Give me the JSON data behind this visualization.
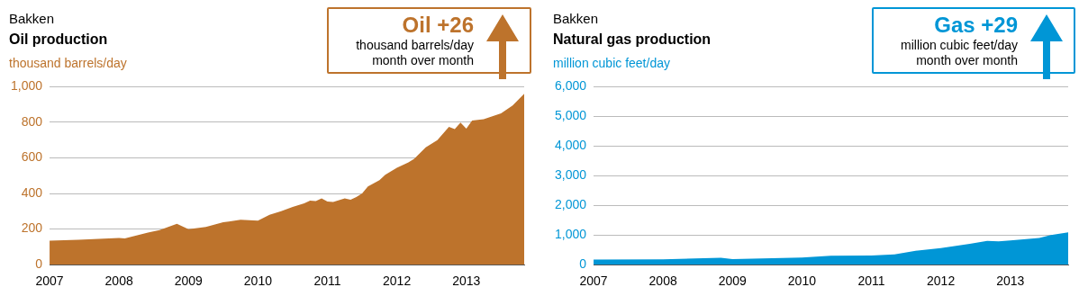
{
  "chart_data": [
    {
      "type": "area",
      "subtitle": "Bakken",
      "title": "Oil production",
      "ylabel": "thousand barrels/day",
      "annotations": [
        "Oil +26",
        "thousand barrels/day",
        "month over month"
      ],
      "x": [
        "2007-01",
        "2007-06",
        "2008-01",
        "2008-02",
        "2008-06",
        "2008-08",
        "2008-11",
        "2009-01",
        "2009-04",
        "2009-07",
        "2009-10",
        "2010-01",
        "2010-03",
        "2010-05",
        "2010-07",
        "2010-09",
        "2010-10",
        "2010-11",
        "2010-12",
        "2011-01",
        "2011-02",
        "2011-04",
        "2011-05",
        "2011-06",
        "2011-07",
        "2011-08",
        "2011-10",
        "2011-11",
        "2012-01",
        "2012-03",
        "2012-04",
        "2012-06",
        "2012-08",
        "2012-10",
        "2012-11",
        "2012-12",
        "2013-01",
        "2013-02",
        "2013-04",
        "2013-07",
        "2013-09",
        "2013-11"
      ],
      "series": [
        {
          "color": "#bd732c",
          "values": [
            135,
            140,
            150,
            148,
            180,
            195,
            230,
            200,
            212,
            238,
            252,
            248,
            280,
            300,
            325,
            345,
            360,
            358,
            373,
            355,
            352,
            373,
            365,
            380,
            400,
            440,
            475,
            505,
            545,
            575,
            595,
            660,
            700,
            775,
            762,
            798,
            765,
            810,
            818,
            850,
            895,
            960
          ]
        }
      ],
      "xlim": [
        "2007-01",
        "2013-11"
      ],
      "xticks": [
        "2007",
        "2008",
        "2009",
        "2010",
        "2011",
        "2012",
        "2013"
      ],
      "ylim": [
        0,
        1000
      ],
      "yticks": [
        0,
        200,
        400,
        600,
        800,
        {
          "value": 1000,
          "label": "1,000"
        }
      ],
      "grid": "y",
      "legend": false
    },
    {
      "type": "area",
      "subtitle": "Bakken",
      "title": "Natural gas production",
      "ylabel": "million cubic feet/day",
      "annotations": [
        "Gas +29",
        "million cubic feet/day",
        "month over month"
      ],
      "x": [
        "2007-01",
        "2008-01",
        "2008-11",
        "2009-01",
        "2010-01",
        "2010-06",
        "2011-01",
        "2011-05",
        "2011-09",
        "2012-01",
        "2012-06",
        "2012-09",
        "2012-11",
        "2013-01",
        "2013-06",
        "2013-08",
        "2013-11"
      ],
      "series": [
        {
          "color": "#0096d6",
          "values": [
            170,
            180,
            230,
            190,
            240,
            300,
            310,
            350,
            480,
            560,
            700,
            800,
            790,
            820,
            900,
            1000,
            1090
          ]
        }
      ],
      "xlim": [
        "2007-01",
        "2013-11"
      ],
      "xticks": [
        "2007",
        "2008",
        "2009",
        "2010",
        "2011",
        "2012",
        "2013"
      ],
      "ylim": [
        0,
        6000
      ],
      "yticks": [
        0,
        {
          "value": 1000,
          "label": "1,000"
        },
        {
          "value": 2000,
          "label": "2,000"
        },
        {
          "value": 3000,
          "label": "3,000"
        },
        {
          "value": 4000,
          "label": "4,000"
        },
        {
          "value": 5000,
          "label": "5,000"
        },
        {
          "value": 6000,
          "label": "6,000"
        }
      ],
      "grid": "y",
      "legend": false
    }
  ]
}
